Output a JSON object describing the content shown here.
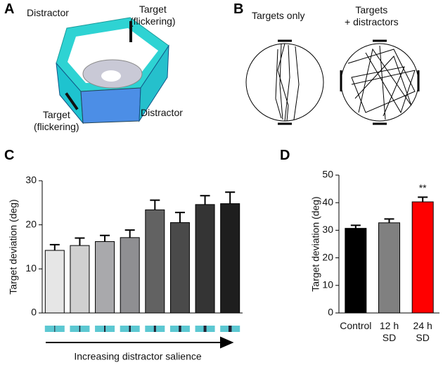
{
  "panels": {
    "a": "A",
    "b": "B",
    "c": "C",
    "d": "D"
  },
  "diagram_a": {
    "distractor_left": "Distractor",
    "target_top": "Target\n(flickering)",
    "target_left": "Target\n(flickering)",
    "distractor_right": "Distractor"
  },
  "diagram_b": {
    "left_title": "Targets only",
    "right_title": "Targets\n+ distractors"
  },
  "chart_data": [
    {
      "type": "bar",
      "ylabel": "Target deviation (deg)",
      "xlabel": "Increasing distractor salience",
      "categories": [
        null,
        null,
        null,
        null,
        null,
        null,
        null,
        null
      ],
      "values": [
        14.2,
        15.3,
        16.2,
        17.1,
        23.4,
        20.5,
        24.6,
        24.8
      ],
      "errors": [
        1.3,
        1.7,
        1.4,
        1.7,
        2.2,
        2.3,
        2.0,
        2.6
      ],
      "colors": [
        "#e6e6e6",
        "#d0d0d0",
        "#a9a9ac",
        "#8f8f92",
        "#626262",
        "#4a4a4a",
        "#343434",
        "#1e1e1e"
      ],
      "ylim": [
        0,
        30
      ],
      "yticks": [
        0,
        10,
        20,
        30
      ]
    },
    {
      "type": "bar",
      "ylabel": "Target deviation (deg)",
      "categories": [
        "Control",
        "12 h\nSD",
        "24 h\nSD"
      ],
      "values": [
        30.7,
        32.7,
        40.3
      ],
      "errors": [
        1.1,
        1.4,
        1.7
      ],
      "colors": [
        "#000000",
        "#808080",
        "#ff0000"
      ],
      "ylim": [
        0,
        50
      ],
      "yticks": [
        0,
        10,
        20,
        30,
        40,
        50
      ],
      "annotation": "**"
    }
  ]
}
